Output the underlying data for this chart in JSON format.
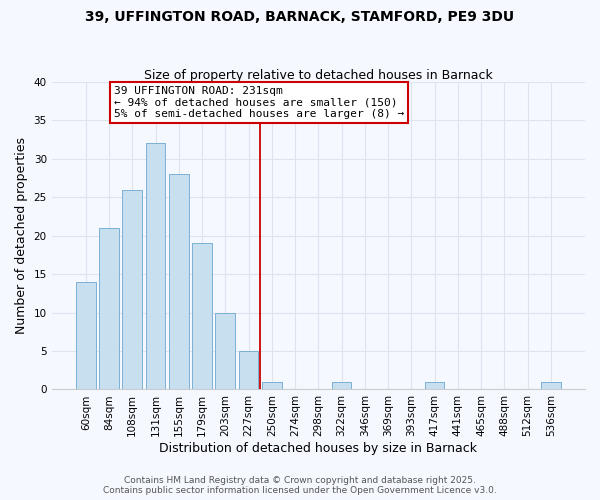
{
  "title": "39, UFFINGTON ROAD, BARNACK, STAMFORD, PE9 3DU",
  "subtitle": "Size of property relative to detached houses in Barnack",
  "xlabel": "Distribution of detached houses by size in Barnack",
  "ylabel": "Number of detached properties",
  "bar_labels": [
    "60sqm",
    "84sqm",
    "108sqm",
    "131sqm",
    "155sqm",
    "179sqm",
    "203sqm",
    "227sqm",
    "250sqm",
    "274sqm",
    "298sqm",
    "322sqm",
    "346sqm",
    "369sqm",
    "393sqm",
    "417sqm",
    "441sqm",
    "465sqm",
    "488sqm",
    "512sqm",
    "536sqm"
  ],
  "bar_values": [
    14,
    21,
    26,
    32,
    28,
    19,
    10,
    5,
    1,
    0,
    0,
    1,
    0,
    0,
    0,
    1,
    0,
    0,
    0,
    0,
    1
  ],
  "bar_color": "#c8dff0",
  "bar_edge_color": "#7ab0d4",
  "ylim": [
    0,
    40
  ],
  "yticks": [
    0,
    5,
    10,
    15,
    20,
    25,
    30,
    35,
    40
  ],
  "vline_x": 7.5,
  "vline_color": "#cc0000",
  "annotation_title": "39 UFFINGTON ROAD: 231sqm",
  "annotation_line1": "← 94% of detached houses are smaller (150)",
  "annotation_line2": "5% of semi-detached houses are larger (8) →",
  "annotation_box_color": "#ffffff",
  "annotation_box_edge": "#cc0000",
  "footer1": "Contains HM Land Registry data © Crown copyright and database right 2025.",
  "footer2": "Contains public sector information licensed under the Open Government Licence v3.0.",
  "bg_color": "#f5f8ff",
  "plot_bg_color": "#f5f8ff",
  "grid_color": "#dde4ee",
  "title_fontsize": 10,
  "subtitle_fontsize": 9,
  "axis_label_fontsize": 9,
  "tick_fontsize": 7.5,
  "annotation_fontsize": 8,
  "footer_fontsize": 6.5
}
